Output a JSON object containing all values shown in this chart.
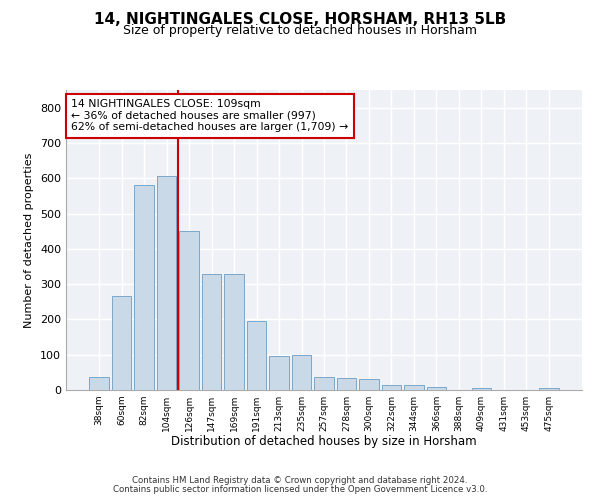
{
  "title1": "14, NIGHTINGALES CLOSE, HORSHAM, RH13 5LB",
  "title2": "Size of property relative to detached houses in Horsham",
  "xlabel": "Distribution of detached houses by size in Horsham",
  "ylabel": "Number of detached properties",
  "categories": [
    "38sqm",
    "60sqm",
    "82sqm",
    "104sqm",
    "126sqm",
    "147sqm",
    "169sqm",
    "191sqm",
    "213sqm",
    "235sqm",
    "257sqm",
    "278sqm",
    "300sqm",
    "322sqm",
    "344sqm",
    "366sqm",
    "388sqm",
    "409sqm",
    "431sqm",
    "453sqm",
    "475sqm"
  ],
  "values": [
    38,
    265,
    582,
    605,
    450,
    328,
    328,
    195,
    95,
    100,
    37,
    35,
    32,
    14,
    14,
    9,
    0,
    7,
    0,
    0,
    5
  ],
  "bar_color": "#c9d9e8",
  "bar_edge_color": "#7ba7c9",
  "annotation_text": "14 NIGHTINGALES CLOSE: 109sqm\n← 36% of detached houses are smaller (997)\n62% of semi-detached houses are larger (1,709) →",
  "annotation_box_color": "white",
  "annotation_box_edge_color": "#cc0000",
  "vline_color": "#cc0000",
  "ylim": [
    0,
    850
  ],
  "yticks": [
    0,
    100,
    200,
    300,
    400,
    500,
    600,
    700,
    800
  ],
  "footer1": "Contains HM Land Registry data © Crown copyright and database right 2024.",
  "footer2": "Contains public sector information licensed under the Open Government Licence v3.0.",
  "bg_color": "#ffffff",
  "plot_bg_color": "#eef2f7",
  "title1_fontsize": 11,
  "title2_fontsize": 9,
  "vline_x_index": 3.5
}
